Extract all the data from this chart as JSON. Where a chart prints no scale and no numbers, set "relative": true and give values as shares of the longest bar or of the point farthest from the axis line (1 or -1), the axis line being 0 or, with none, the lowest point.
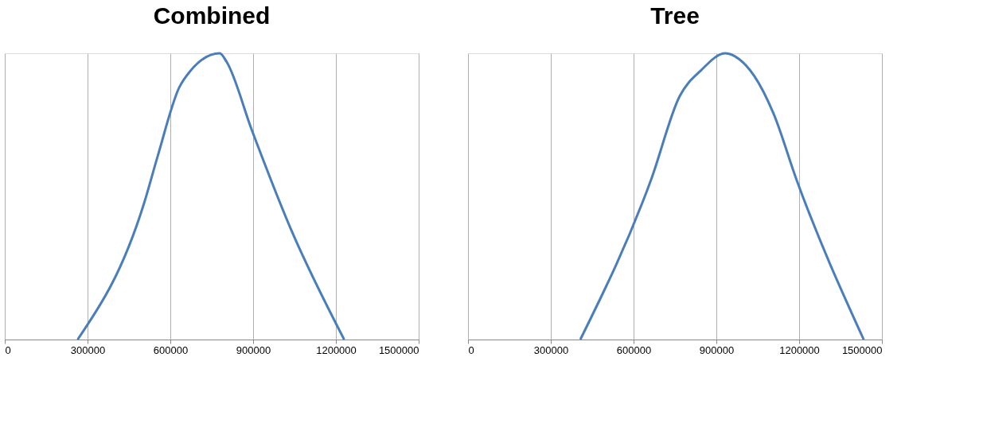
{
  "chart_data": [
    {
      "type": "line",
      "title": "Combined",
      "relative": true,
      "xlim": [
        0,
        1500000
      ],
      "xticks": [
        0,
        300000,
        600000,
        900000,
        1200000,
        1500000
      ],
      "grid": "x",
      "series": [
        {
          "color": "#4a7ebb",
          "x": [
            264000,
            506000,
            554000,
            632000,
            674000,
            779000,
            804000,
            896000,
            1035000,
            1230000
          ],
          "values": [
            0,
            0.48,
            0.64,
            0.88,
            0.94,
            1,
            0.97,
            0.73,
            0.39,
            0
          ]
        }
      ]
    },
    {
      "type": "line",
      "title": "Tree",
      "relative": true,
      "xlim": [
        0,
        1500000
      ],
      "xticks": [
        0,
        300000,
        600000,
        900000,
        1200000,
        1500000
      ],
      "grid": "x",
      "series": [
        {
          "color": "#4a7ebb",
          "x": [
            407000,
            664000,
            767000,
            844000,
            933000,
            982000,
            1038000,
            1107000,
            1190000,
            1434000
          ],
          "values": [
            0,
            0.56,
            0.85,
            0.94,
            1,
            0.98,
            0.92,
            0.79,
            0.56,
            0
          ]
        }
      ]
    }
  ]
}
